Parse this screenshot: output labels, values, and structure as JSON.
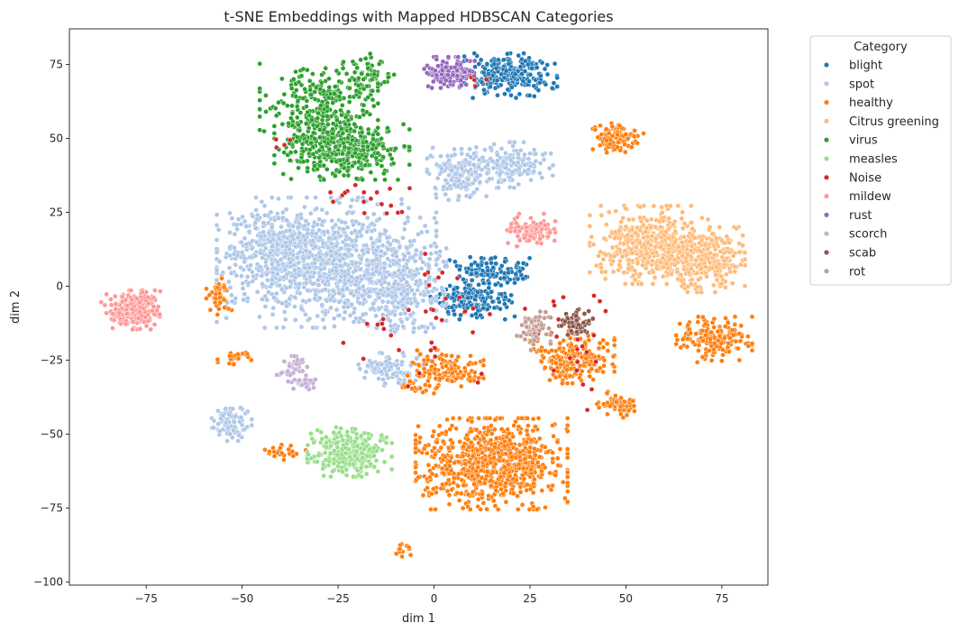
{
  "chart_data": {
    "type": "scatter",
    "title": "t-SNE Embeddings with Mapped HDBSCAN Categories",
    "xlabel": "dim 1",
    "ylabel": "dim 2",
    "xlim": [
      -95,
      87
    ],
    "ylim": [
      -101,
      87
    ],
    "xticks": [
      -75,
      -50,
      -25,
      0,
      25,
      50,
      75
    ],
    "yticks": [
      75,
      50,
      25,
      0,
      -25,
      -50,
      -75,
      -100
    ],
    "xtick_labels": [
      "−75",
      "−50",
      "−25",
      "0",
      "25",
      "50",
      "75"
    ],
    "ytick_labels": [
      "75",
      "50",
      "25",
      "0",
      "−25",
      "−50",
      "−75",
      "−100"
    ],
    "grid": false,
    "legend": {
      "title": "Category",
      "placement": "outside-right",
      "entries": [
        "blight",
        "spot",
        "healthy",
        "Citrus greening",
        "virus",
        "measles",
        "Noise",
        "mildew",
        "rust",
        "scorch",
        "scab",
        "rot"
      ]
    },
    "colors": {
      "blight": "#1f77b4",
      "spot": "#aec7e8",
      "healthy": "#ff7f0e",
      "Citrus greening": "#ffbb78",
      "virus": "#2ca02c",
      "measles": "#98df8a",
      "Noise": "#d62728",
      "mildew": "#ff9896",
      "rust": "#9467bd",
      "scorch": "#c5b0d5",
      "scab": "#8c564b",
      "rot": "#c49c94"
    },
    "series": [
      {
        "name": "blight",
        "clusters": [
          {
            "x": 20,
            "y": 71,
            "sx": 5.5,
            "sy": 3.5,
            "n": 240
          },
          {
            "x": 14,
            "y": 5,
            "sx": 5,
            "sy": 2.2,
            "n": 120
          },
          {
            "x": 10,
            "y": -5,
            "sx": 5,
            "sy": 2.8,
            "n": 150
          }
        ]
      },
      {
        "name": "spot",
        "clusters": [
          {
            "x": -28,
            "y": 8,
            "sx": 13,
            "sy": 10,
            "n": 1100
          },
          {
            "x": -40,
            "y": 14,
            "sx": 6,
            "sy": 6,
            "n": 200
          },
          {
            "x": -10,
            "y": 0,
            "sx": 6,
            "sy": 7,
            "n": 250
          },
          {
            "x": 7,
            "y": 38,
            "sx": 4,
            "sy": 4,
            "n": 160
          },
          {
            "x": 20,
            "y": 41,
            "sx": 5,
            "sy": 3.5,
            "n": 150
          },
          {
            "x": -11,
            "y": -28,
            "sx": 4,
            "sy": 2.5,
            "n": 90
          },
          {
            "x": -53,
            "y": -46,
            "sx": 2.5,
            "sy": 3,
            "n": 80
          }
        ]
      },
      {
        "name": "healthy",
        "clusters": [
          {
            "x": 15,
            "y": -60,
            "sx": 9,
            "sy": 7,
            "n": 800
          },
          {
            "x": 36,
            "y": -24,
            "sx": 5,
            "sy": 4,
            "n": 200
          },
          {
            "x": 73,
            "y": -18,
            "sx": 4.5,
            "sy": 3.5,
            "n": 160
          },
          {
            "x": 48,
            "y": 50,
            "sx": 3,
            "sy": 2.3,
            "n": 100
          },
          {
            "x": 3,
            "y": -28,
            "sx": 4.5,
            "sy": 3,
            "n": 140
          },
          {
            "x": 48,
            "y": -40,
            "sx": 2.5,
            "sy": 2,
            "n": 60
          },
          {
            "x": -56,
            "y": -3,
            "sx": 1.5,
            "sy": 3,
            "n": 40
          },
          {
            "x": -52,
            "y": -24,
            "sx": 2,
            "sy": 1.2,
            "n": 30
          },
          {
            "x": -4,
            "y": -34,
            "sx": 2.5,
            "sy": 1,
            "n": 20
          },
          {
            "x": -40,
            "y": -56,
            "sx": 3,
            "sy": 1.2,
            "n": 25
          },
          {
            "x": -8,
            "y": -89,
            "sx": 1,
            "sy": 1.3,
            "n": 15
          }
        ]
      },
      {
        "name": "Citrus greening",
        "clusters": [
          {
            "x": 56,
            "y": 14,
            "sx": 7,
            "sy": 6,
            "n": 450
          },
          {
            "x": 70,
            "y": 9,
            "sx": 5,
            "sy": 5,
            "n": 300
          }
        ]
      },
      {
        "name": "virus",
        "clusters": [
          {
            "x": -24,
            "y": 47,
            "sx": 8,
            "sy": 5,
            "n": 420
          },
          {
            "x": -30,
            "y": 62,
            "sx": 7,
            "sy": 6,
            "n": 260
          },
          {
            "x": -17,
            "y": 72,
            "sx": 3,
            "sy": 3,
            "n": 60
          }
        ]
      },
      {
        "name": "measles",
        "clusters": [
          {
            "x": -22,
            "y": -56,
            "sx": 5,
            "sy": 3.8,
            "n": 300
          }
        ]
      },
      {
        "name": "Noise",
        "clusters": [
          {
            "x": -16,
            "y": 30,
            "sx": 5,
            "sy": 3,
            "n": 18
          },
          {
            "x": -8,
            "y": -12,
            "sx": 12,
            "sy": 5,
            "n": 18
          },
          {
            "x": 40,
            "y": -26,
            "sx": 4,
            "sy": 8,
            "n": 14
          },
          {
            "x": 0,
            "y": 3,
            "sx": 3,
            "sy": 5,
            "n": 10
          },
          {
            "x": 30,
            "y": -12,
            "sx": 6,
            "sy": 4,
            "n": 10
          },
          {
            "x": 10,
            "y": 70,
            "sx": 3,
            "sy": 2,
            "n": 6
          },
          {
            "x": -40,
            "y": 47,
            "sx": 2,
            "sy": 2,
            "n": 4
          },
          {
            "x": -3,
            "y": -25,
            "sx": 7,
            "sy": 4,
            "n": 10
          }
        ]
      },
      {
        "name": "mildew",
        "clusters": [
          {
            "x": -79,
            "y": -8,
            "sx": 3.5,
            "sy": 3,
            "n": 240
          },
          {
            "x": 25,
            "y": 19,
            "sx": 3,
            "sy": 2.5,
            "n": 100
          }
        ]
      },
      {
        "name": "rust",
        "clusters": [
          {
            "x": 4,
            "y": 72,
            "sx": 3,
            "sy": 2.5,
            "n": 140
          }
        ]
      },
      {
        "name": "scorch",
        "clusters": [
          {
            "x": -37,
            "y": -28,
            "sx": 1.8,
            "sy": 2,
            "n": 40
          },
          {
            "x": -34,
            "y": -33,
            "sx": 1.5,
            "sy": 1.3,
            "n": 20
          }
        ]
      },
      {
        "name": "scab",
        "clusters": [
          {
            "x": 37,
            "y": -12,
            "sx": 2,
            "sy": 2,
            "n": 70
          }
        ]
      },
      {
        "name": "rot",
        "clusters": [
          {
            "x": 26,
            "y": -15,
            "sx": 2,
            "sy": 3,
            "n": 70
          }
        ]
      }
    ]
  }
}
